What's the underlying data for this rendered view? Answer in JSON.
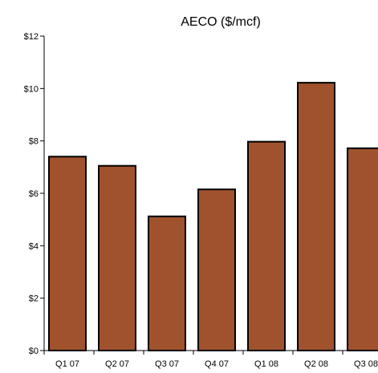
{
  "chart_data": {
    "type": "bar",
    "title": "AECO ($/mcf)",
    "xlabel": "",
    "ylabel": "",
    "categories": [
      "Q1 07",
      "Q2 07",
      "Q3 07",
      "Q4 07",
      "Q1 08",
      "Q2 08",
      "Q3 08"
    ],
    "values": [
      7.4,
      7.05,
      5.12,
      6.15,
      7.97,
      10.22,
      7.72
    ],
    "ylim": [
      0,
      12
    ],
    "yticks": [
      "$0",
      "$2",
      "$4",
      "$6",
      "$8",
      "$10",
      "$12"
    ],
    "grid": false,
    "legend": "none",
    "colors": {
      "bar": "#a0522d",
      "bar_edge": "#000000",
      "axis": "#000000"
    }
  }
}
